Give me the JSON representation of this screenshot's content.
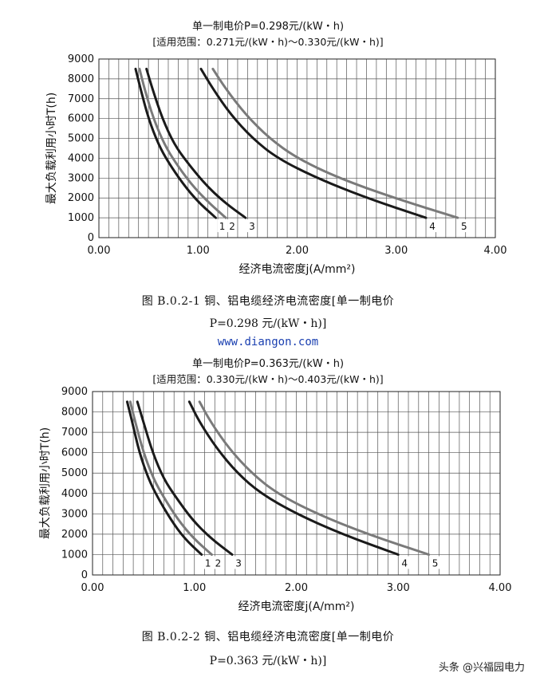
{
  "chart_data": [
    {
      "type": "line",
      "title": "单一制电价P=0.298元/(kW・h)",
      "subtitle": "[适用范围：0.271元/(kW・h)～0.330元/(kW・h)]",
      "xlabel": "经济电流密度j(A/mm²)",
      "ylabel": "最大负载利用小时T(h)",
      "xlim": [
        0,
        4
      ],
      "ylim": [
        0,
        9000
      ],
      "x_ticks": [
        "0.00",
        "1.00",
        "2.00",
        "3.00",
        "4.00"
      ],
      "y_ticks": [
        "0",
        "1000",
        "2000",
        "3000",
        "4000",
        "5000",
        "6000",
        "7000",
        "8000",
        "9000"
      ],
      "grid": true,
      "caption_line1": "图 B.0.2-1   铜、铝电缆经济电流密度[单一制电价",
      "caption_line2": "P=0.298 元/(kW・h)]",
      "series": [
        {
          "name": "1",
          "color": "#1a1a1a",
          "points": [
            [
              0.37,
              8500
            ],
            [
              0.42,
              7500
            ],
            [
              0.5,
              6000
            ],
            [
              0.6,
              4700
            ],
            [
              0.7,
              3800
            ],
            [
              0.85,
              2700
            ],
            [
              1.0,
              1800
            ],
            [
              1.18,
              1000
            ]
          ]
        },
        {
          "name": "2",
          "color": "#7a7a7a",
          "points": [
            [
              0.41,
              8500
            ],
            [
              0.46,
              7500
            ],
            [
              0.55,
              6000
            ],
            [
              0.66,
              4700
            ],
            [
              0.77,
              3800
            ],
            [
              0.93,
              2700
            ],
            [
              1.1,
              1800
            ],
            [
              1.28,
              1000
            ]
          ]
        },
        {
          "name": "3",
          "color": "#1a1a1a",
          "points": [
            [
              0.48,
              8500
            ],
            [
              0.54,
              7500
            ],
            [
              0.64,
              6000
            ],
            [
              0.76,
              4700
            ],
            [
              0.89,
              3800
            ],
            [
              1.07,
              2700
            ],
            [
              1.26,
              1800
            ],
            [
              1.48,
              1000
            ]
          ]
        },
        {
          "name": "4",
          "color": "#1a1a1a",
          "points": [
            [
              1.03,
              8500
            ],
            [
              1.15,
              7500
            ],
            [
              1.33,
              6200
            ],
            [
              1.55,
              5000
            ],
            [
              1.8,
              4000
            ],
            [
              2.2,
              3000
            ],
            [
              2.7,
              2000
            ],
            [
              3.3,
              1000
            ]
          ]
        },
        {
          "name": "5",
          "color": "#7a7a7a",
          "points": [
            [
              1.15,
              8500
            ],
            [
              1.28,
              7500
            ],
            [
              1.48,
              6200
            ],
            [
              1.72,
              5000
            ],
            [
              2.0,
              4000
            ],
            [
              2.42,
              3000
            ],
            [
              2.98,
              2000
            ],
            [
              3.62,
              1000
            ]
          ]
        }
      ]
    },
    {
      "type": "line",
      "title": "单一制电价P=0.363元/(kW・h)",
      "subtitle": "[适用范围：0.330元/(kW・h)～0.403元/(kW・h)]",
      "xlabel": "经济电流密度j(A/mm²)",
      "ylabel": "最大负载利用小时T(h)",
      "xlim": [
        0,
        4
      ],
      "ylim": [
        0,
        9000
      ],
      "x_ticks": [
        "0.00",
        "1.00",
        "2.00",
        "3.00",
        "4.00"
      ],
      "y_ticks": [
        "0",
        "1000",
        "2000",
        "3000",
        "4000",
        "5000",
        "6000",
        "7000",
        "8000",
        "9000"
      ],
      "grid": true,
      "caption_line1": "图 B.0.2-2   铜、铝电缆经济电流密度[单一制电价",
      "caption_line2": "P=0.363 元/(kW・h)]",
      "series": [
        {
          "name": "1",
          "color": "#1a1a1a",
          "points": [
            [
              0.34,
              8500
            ],
            [
              0.39,
              7500
            ],
            [
              0.46,
              6000
            ],
            [
              0.55,
              4700
            ],
            [
              0.64,
              3800
            ],
            [
              0.77,
              2700
            ],
            [
              0.9,
              1800
            ],
            [
              1.07,
              1000
            ]
          ]
        },
        {
          "name": "2",
          "color": "#7a7a7a",
          "points": [
            [
              0.37,
              8500
            ],
            [
              0.42,
              7500
            ],
            [
              0.5,
              6000
            ],
            [
              0.6,
              4700
            ],
            [
              0.7,
              3800
            ],
            [
              0.84,
              2700
            ],
            [
              0.99,
              1800
            ],
            [
              1.17,
              1000
            ]
          ]
        },
        {
          "name": "3",
          "color": "#1a1a1a",
          "points": [
            [
              0.44,
              8500
            ],
            [
              0.5,
              7500
            ],
            [
              0.59,
              6000
            ],
            [
              0.7,
              4700
            ],
            [
              0.82,
              3800
            ],
            [
              0.98,
              2700
            ],
            [
              1.16,
              1800
            ],
            [
              1.37,
              1000
            ]
          ]
        },
        {
          "name": "4",
          "color": "#1a1a1a",
          "points": [
            [
              0.95,
              8500
            ],
            [
              1.05,
              7500
            ],
            [
              1.22,
              6200
            ],
            [
              1.42,
              5000
            ],
            [
              1.65,
              4000
            ],
            [
              2.0,
              3000
            ],
            [
              2.45,
              2000
            ],
            [
              3.0,
              1000
            ]
          ]
        },
        {
          "name": "5",
          "color": "#7a7a7a",
          "points": [
            [
              1.05,
              8500
            ],
            [
              1.16,
              7500
            ],
            [
              1.34,
              6200
            ],
            [
              1.56,
              5000
            ],
            [
              1.81,
              4000
            ],
            [
              2.2,
              3000
            ],
            [
              2.7,
              2000
            ],
            [
              3.3,
              1000
            ]
          ]
        }
      ]
    }
  ],
  "site_url": "www.diangon.com",
  "watermark": "头条 @兴福园电力"
}
